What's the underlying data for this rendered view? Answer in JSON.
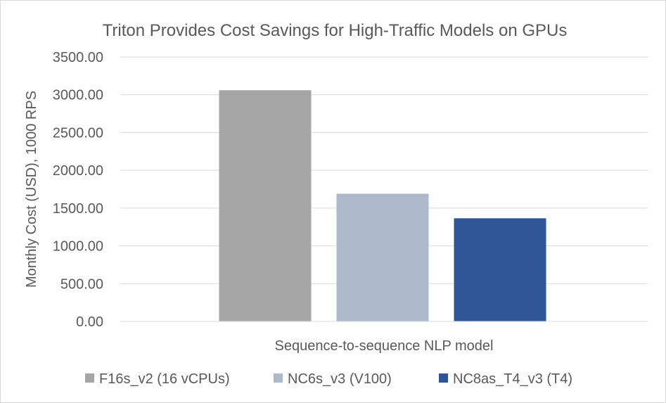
{
  "chart_data": {
    "type": "bar",
    "title": "Triton Provides Cost Savings for High-Traffic Models on GPUs",
    "xlabel": "Sequence-to-sequence NLP model",
    "ylabel": "Monthly Cost (USD), 1000 RPS",
    "ylim": [
      0,
      3500
    ],
    "yticks": [
      "0.00",
      "500.00",
      "1000.00",
      "1500.00",
      "2000.00",
      "2500.00",
      "3000.00",
      "3500.00"
    ],
    "grid": true,
    "legend_position": "bottom",
    "series": [
      {
        "name": "F16s_v2 (16 vCPUs)",
        "values": [
          3060
        ],
        "color": "#a5a5a5"
      },
      {
        "name": "NC6s_v3 (V100)",
        "values": [
          1690
        ],
        "color": "#adb9ca"
      },
      {
        "name": "NC8as_T4_v3 (T4)",
        "values": [
          1365
        ],
        "color": "#2f5597"
      }
    ]
  }
}
